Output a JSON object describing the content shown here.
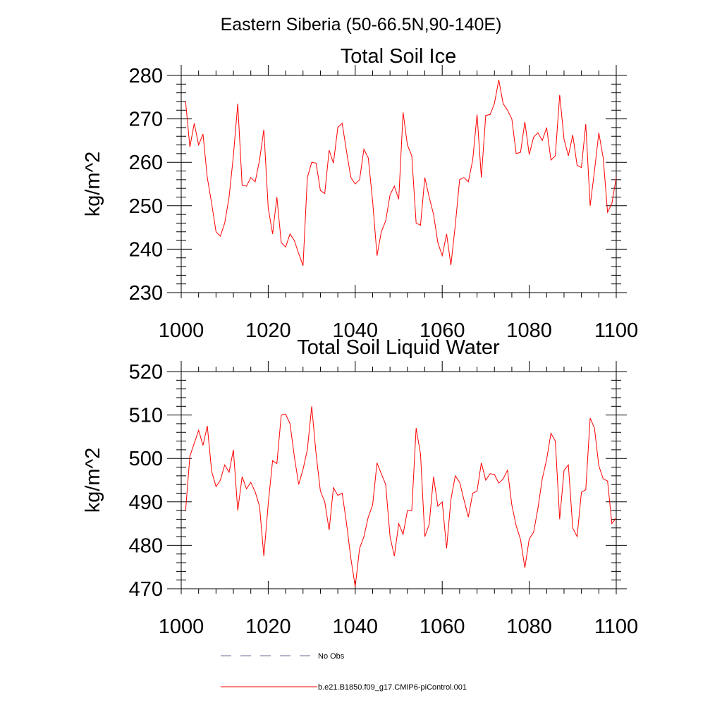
{
  "figure_title": "Eastern Siberia (50-66.5N,90-140E)",
  "legend": {
    "entries": [
      {
        "label": "No Obs",
        "style": "dashed",
        "color": "#6b6b9a"
      },
      {
        "label": "b.e21.B1850.f09_g17.CMIP6-piControl.001",
        "style": "solid",
        "color": "#ff0000"
      }
    ]
  },
  "chart_data": [
    {
      "type": "line",
      "title": "Total Soil Ice",
      "xlabel": "",
      "ylabel": "kg/m^2",
      "xlim": [
        1000,
        1100
      ],
      "ylim": [
        230,
        280
      ],
      "xticks": [
        1000,
        1020,
        1040,
        1060,
        1080,
        1100
      ],
      "yticks": [
        230,
        240,
        250,
        260,
        270,
        280
      ],
      "xtick_labels": [
        "1000",
        "1020",
        "1040",
        "1060",
        "1080",
        "1100"
      ],
      "ytick_labels": [
        "230",
        "240",
        "250",
        "260",
        "270",
        "280"
      ],
      "series": [
        {
          "name": "b.e21.B1850.f09_g17.CMIP6-piControl.001",
          "color": "#ff0000",
          "x": [
            1001,
            1002,
            1003,
            1004,
            1005,
            1006,
            1007,
            1008,
            1009,
            1010,
            1011,
            1012,
            1013,
            1014,
            1015,
            1016,
            1017,
            1018,
            1019,
            1020,
            1021,
            1022,
            1023,
            1024,
            1025,
            1026,
            1027,
            1028,
            1029,
            1030,
            1031,
            1032,
            1033,
            1034,
            1035,
            1036,
            1037,
            1038,
            1039,
            1040,
            1041,
            1042,
            1043,
            1044,
            1045,
            1046,
            1047,
            1048,
            1049,
            1050,
            1051,
            1052,
            1053,
            1054,
            1055,
            1056,
            1057,
            1058,
            1059,
            1060,
            1061,
            1062,
            1063,
            1064,
            1065,
            1066,
            1067,
            1068,
            1069,
            1070,
            1071,
            1072,
            1073,
            1074,
            1075,
            1076,
            1077,
            1078,
            1079,
            1080,
            1081,
            1082,
            1083,
            1084,
            1085,
            1086,
            1087,
            1088,
            1089,
            1090,
            1091,
            1092,
            1093,
            1094,
            1095,
            1096,
            1097,
            1098,
            1099,
            1100
          ],
          "values": [
            274,
            263.5,
            269,
            264,
            266.5,
            256.5,
            250.5,
            244,
            243,
            246,
            252,
            261.5,
            273.5,
            254.7,
            254.5,
            256.5,
            255.5,
            260.5,
            267.5,
            249.5,
            243.5,
            252,
            241.5,
            240.5,
            243.5,
            242,
            239,
            236.2,
            256.5,
            260,
            259.8,
            253.5,
            252.8,
            262.8,
            259.8,
            268,
            269,
            262.5,
            256.5,
            255,
            256,
            263,
            261,
            251,
            238.5,
            244,
            246.5,
            252.5,
            254.5,
            251.5,
            271.5,
            264,
            261.5,
            246,
            245.5,
            256.5,
            252,
            248,
            241.5,
            238.5,
            243.5,
            236.3,
            245.5,
            256,
            256.5,
            255.5,
            260.5,
            271,
            256.5,
            270.8,
            271,
            273.5,
            279,
            273.5,
            272,
            270,
            262,
            262.3,
            269.3,
            261.8,
            265.8,
            266.8,
            265,
            268,
            260.5,
            261.5,
            275.5,
            265.3,
            261.5,
            266.3,
            259.3,
            258.8,
            268.8,
            250,
            258,
            266.8,
            261,
            248.5,
            250.5,
            256.5
          ]
        }
      ]
    },
    {
      "type": "line",
      "title": "Total Soil Liquid Water",
      "xlabel": "",
      "ylabel": "kg/m^2",
      "xlim": [
        1000,
        1100
      ],
      "ylim": [
        470,
        520
      ],
      "xticks": [
        1000,
        1020,
        1040,
        1060,
        1080,
        1100
      ],
      "yticks": [
        470,
        480,
        490,
        500,
        510,
        520
      ],
      "xtick_labels": [
        "1000",
        "1020",
        "1040",
        "1060",
        "1080",
        "1100"
      ],
      "ytick_labels": [
        "470",
        "480",
        "490",
        "500",
        "510",
        "520"
      ],
      "series": [
        {
          "name": "b.e21.B1850.f09_g17.CMIP6-piControl.001",
          "color": "#ff0000",
          "x": [
            1001,
            1002,
            1003,
            1004,
            1005,
            1006,
            1007,
            1008,
            1009,
            1010,
            1011,
            1012,
            1013,
            1014,
            1015,
            1016,
            1017,
            1018,
            1019,
            1020,
            1021,
            1022,
            1023,
            1024,
            1025,
            1026,
            1027,
            1028,
            1029,
            1030,
            1031,
            1032,
            1033,
            1034,
            1035,
            1036,
            1037,
            1038,
            1039,
            1040,
            1041,
            1042,
            1043,
            1044,
            1045,
            1046,
            1047,
            1048,
            1049,
            1050,
            1051,
            1052,
            1053,
            1054,
            1055,
            1056,
            1057,
            1058,
            1059,
            1060,
            1061,
            1062,
            1063,
            1064,
            1065,
            1066,
            1067,
            1068,
            1069,
            1070,
            1071,
            1072,
            1073,
            1074,
            1075,
            1076,
            1077,
            1078,
            1079,
            1080,
            1081,
            1082,
            1083,
            1084,
            1085,
            1086,
            1087,
            1088,
            1089,
            1090,
            1091,
            1092,
            1093,
            1094,
            1095,
            1096,
            1097,
            1098,
            1099,
            1100
          ],
          "values": [
            488,
            500.5,
            503.5,
            506.5,
            503,
            507.5,
            497,
            493.5,
            495,
            498.5,
            496.8,
            502,
            488,
            495.8,
            493,
            494.5,
            492.3,
            489,
            477.5,
            489.5,
            499.5,
            498.8,
            510,
            510.2,
            508,
            500.5,
            494,
            497.5,
            502,
            512,
            501,
            492.5,
            490,
            483.5,
            493.3,
            491.5,
            492,
            485,
            477,
            470.5,
            479.3,
            482,
            486.5,
            489.3,
            499,
            496.5,
            494,
            482,
            477.5,
            485,
            482.5,
            488,
            488,
            507,
            501,
            482,
            484.8,
            495.8,
            489,
            490,
            479.3,
            490.5,
            496,
            494.5,
            490.5,
            486.5,
            492,
            492.5,
            499,
            495,
            496.5,
            496.3,
            494.3,
            495.3,
            497.3,
            489.3,
            484.5,
            481.3,
            474.8,
            481.5,
            483,
            488.5,
            495.3,
            499.8,
            505.8,
            504,
            486,
            497.3,
            498.5,
            484,
            482,
            492.2,
            492.8,
            509.3,
            507,
            498.3,
            495.3,
            494.8,
            485,
            486.3
          ]
        }
      ]
    }
  ]
}
